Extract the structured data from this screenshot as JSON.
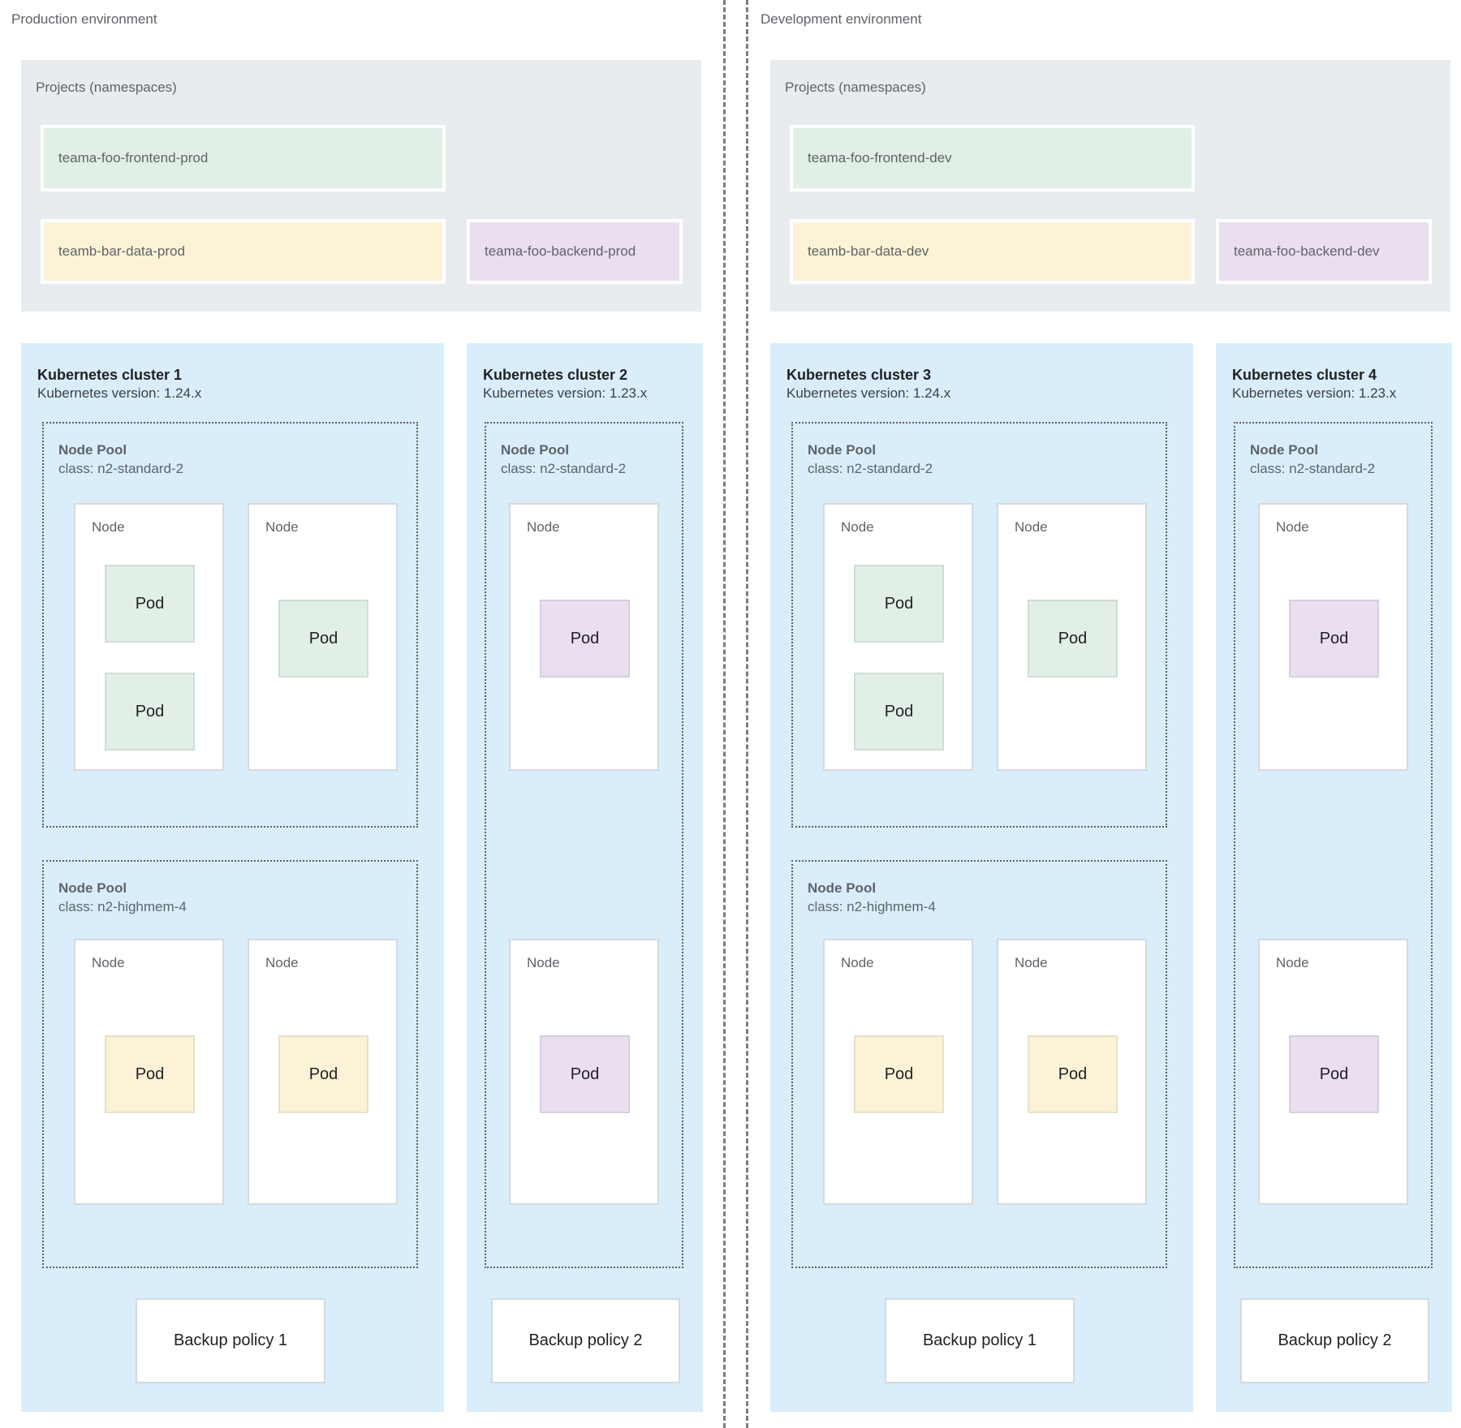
{
  "colors": {
    "projects_bg": "#e9ecef",
    "cluster_bg": "#d9edfb",
    "namespace_green": "#e1efe7",
    "namespace_yellow": "#fcf3d6",
    "namespace_purple": "#eadef1",
    "node_border": "#d6d9dc",
    "pool_dash_border": "#5c6064",
    "divider_line": "#797e82",
    "text_muted": "#5f6368",
    "text_dark": "#202124"
  },
  "environments": [
    {
      "label": "Production environment",
      "projects": {
        "title": "Projects (namespaces)",
        "namespaces": [
          {
            "name": "teama-foo-frontend-prod",
            "color": "green"
          },
          {
            "name": "teamb-bar-data-prod",
            "color": "yellow"
          },
          {
            "name": "teama-foo-backend-prod",
            "color": "purple"
          }
        ]
      },
      "clusters": [
        {
          "title": "Kubernetes cluster 1",
          "version": "Kubernetes version: 1.24.x",
          "node_pools": [
            {
              "name": "Node Pool",
              "class": "class: n2-standard-2",
              "nodes": [
                {
                  "name": "Node",
                  "pods": [
                    {
                      "label": "Pod",
                      "color": "green"
                    },
                    {
                      "label": "Pod",
                      "color": "green"
                    }
                  ]
                },
                {
                  "name": "Node",
                  "pods": [
                    {
                      "label": "Pod",
                      "color": "green"
                    }
                  ]
                }
              ]
            },
            {
              "name": "Node Pool",
              "class": "class: n2-highmem-4",
              "nodes": [
                {
                  "name": "Node",
                  "pods": [
                    {
                      "label": "Pod",
                      "color": "yellow"
                    }
                  ]
                },
                {
                  "name": "Node",
                  "pods": [
                    {
                      "label": "Pod",
                      "color": "yellow"
                    }
                  ]
                }
              ]
            }
          ],
          "backup_policy": "Backup policy 1"
        },
        {
          "title": "Kubernetes cluster 2",
          "version": "Kubernetes version: 1.23.x",
          "node_pools": [
            {
              "name": "Node Pool",
              "class": "class: n2-standard-2",
              "nodes": [
                {
                  "name": "Node",
                  "pods": [
                    {
                      "label": "Pod",
                      "color": "purple"
                    }
                  ]
                },
                {
                  "name": "Node",
                  "pods": [
                    {
                      "label": "Pod",
                      "color": "purple"
                    }
                  ]
                }
              ]
            }
          ],
          "backup_policy": "Backup policy 2"
        }
      ]
    },
    {
      "label": "Development environment",
      "projects": {
        "title": "Projects (namespaces)",
        "namespaces": [
          {
            "name": "teama-foo-frontend-dev",
            "color": "green"
          },
          {
            "name": "teamb-bar-data-dev",
            "color": "yellow"
          },
          {
            "name": "teama-foo-backend-dev",
            "color": "purple"
          }
        ]
      },
      "clusters": [
        {
          "title": "Kubernetes cluster 3",
          "version": "Kubernetes version: 1.24.x",
          "node_pools": [
            {
              "name": "Node Pool",
              "class": "class: n2-standard-2",
              "nodes": [
                {
                  "name": "Node",
                  "pods": [
                    {
                      "label": "Pod",
                      "color": "green"
                    },
                    {
                      "label": "Pod",
                      "color": "green"
                    }
                  ]
                },
                {
                  "name": "Node",
                  "pods": [
                    {
                      "label": "Pod",
                      "color": "green"
                    }
                  ]
                }
              ]
            },
            {
              "name": "Node Pool",
              "class": "class: n2-highmem-4",
              "nodes": [
                {
                  "name": "Node",
                  "pods": [
                    {
                      "label": "Pod",
                      "color": "yellow"
                    }
                  ]
                },
                {
                  "name": "Node",
                  "pods": [
                    {
                      "label": "Pod",
                      "color": "yellow"
                    }
                  ]
                }
              ]
            }
          ],
          "backup_policy": "Backup policy 1"
        },
        {
          "title": "Kubernetes cluster 4",
          "version": "Kubernetes version: 1.23.x",
          "node_pools": [
            {
              "name": "Node Pool",
              "class": "class: n2-standard-2",
              "nodes": [
                {
                  "name": "Node",
                  "pods": [
                    {
                      "label": "Pod",
                      "color": "purple"
                    }
                  ]
                },
                {
                  "name": "Node",
                  "pods": [
                    {
                      "label": "Pod",
                      "color": "purple"
                    }
                  ]
                }
              ]
            }
          ],
          "backup_policy": "Backup policy 2"
        }
      ]
    }
  ]
}
